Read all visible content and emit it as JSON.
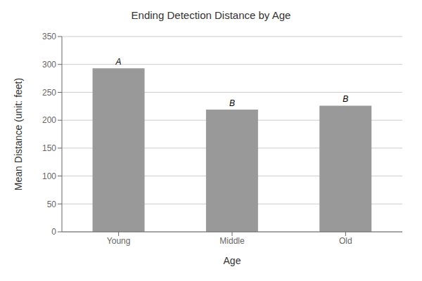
{
  "chart_data": {
    "type": "bar",
    "title": "Ending Detection Distance by Age",
    "xlabel": "Age",
    "ylabel": "Mean Distance (unit: feet)",
    "categories": [
      "Young",
      "Middle",
      "Old"
    ],
    "values": [
      293,
      219,
      226
    ],
    "annotations": [
      "A",
      "B",
      "B"
    ],
    "color": "#999999",
    "ylim": [
      0,
      350
    ],
    "yticks": [
      0,
      50,
      100,
      150,
      200,
      250,
      300,
      350
    ],
    "grid": true
  }
}
